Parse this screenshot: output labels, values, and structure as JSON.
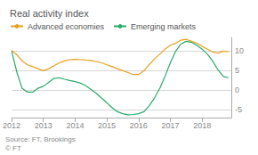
{
  "chart_data": {
    "type": "line",
    "title": "Real activity index",
    "annotation": "Source: FT, Brookings\n© FT",
    "x": [
      2012.0,
      2012.17,
      2012.33,
      2012.5,
      2012.67,
      2012.83,
      2013.0,
      2013.17,
      2013.33,
      2013.5,
      2013.67,
      2013.83,
      2014.0,
      2014.17,
      2014.33,
      2014.5,
      2014.67,
      2014.83,
      2015.0,
      2015.17,
      2015.33,
      2015.5,
      2015.67,
      2015.83,
      2016.0,
      2016.17,
      2016.33,
      2016.5,
      2016.67,
      2016.83,
      2017.0,
      2017.17,
      2017.33,
      2017.5,
      2017.67,
      2017.83,
      2018.0,
      2018.17,
      2018.33,
      2018.5,
      2018.67,
      2018.83
    ],
    "series": [
      {
        "name": "Advanced economies",
        "color": "#e8a020",
        "values": [
          10.2,
          9.0,
          7.5,
          6.5,
          6.0,
          5.5,
          5.0,
          5.5,
          6.2,
          7.0,
          7.5,
          7.8,
          7.9,
          7.8,
          7.7,
          7.6,
          7.3,
          7.0,
          6.5,
          6.0,
          5.5,
          5.0,
          4.5,
          4.0,
          4.0,
          5.0,
          6.5,
          8.0,
          9.2,
          10.5,
          11.5,
          12.0,
          12.8,
          13.0,
          12.5,
          12.0,
          11.2,
          10.5,
          9.8,
          9.5,
          10.0,
          9.8
        ]
      },
      {
        "name": "Emerging markets",
        "color": "#2aaa6a",
        "values": [
          10.0,
          4.5,
          0.5,
          -0.5,
          -0.5,
          0.5,
          1.0,
          2.0,
          3.0,
          3.2,
          2.8,
          2.5,
          2.2,
          1.8,
          1.2,
          0.2,
          -0.8,
          -2.0,
          -3.2,
          -4.5,
          -5.5,
          -6.0,
          -6.3,
          -6.2,
          -6.0,
          -5.5,
          -4.0,
          -2.0,
          0.5,
          3.5,
          7.0,
          10.0,
          11.8,
          12.5,
          12.2,
          11.5,
          10.5,
          9.2,
          7.5,
          5.2,
          3.5,
          3.2
        ]
      }
    ],
    "xlim": [
      2012.0,
      2018.92
    ],
    "xticks": [
      2012,
      2013,
      2014,
      2015,
      2016,
      2017,
      2018
    ],
    "ylim": [
      -7,
      13.5
    ],
    "yticks": [
      -5,
      0,
      5,
      10
    ],
    "grid": true,
    "legend": "upper left"
  }
}
